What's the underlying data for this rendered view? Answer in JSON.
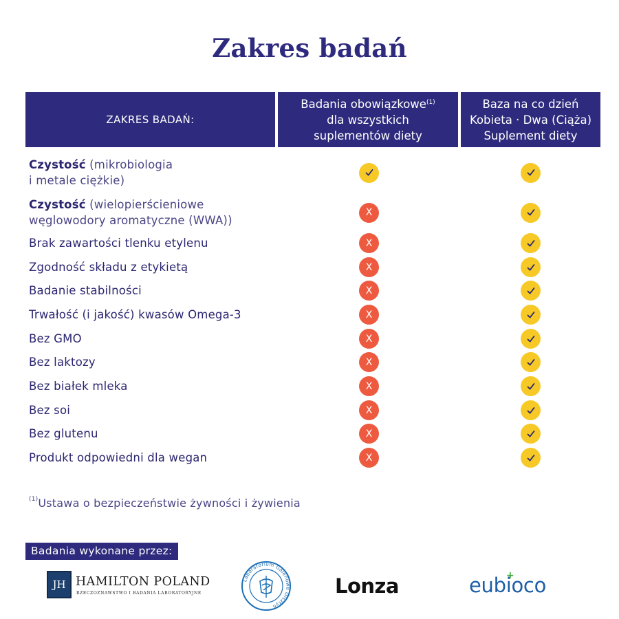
{
  "title": "Zakres badań",
  "header": {
    "col1": "ZAKRES BADAŃ:",
    "col2_line1": "Badania obowiązkowe",
    "col2_sup": "(1)",
    "col2_line2": "dla wszystkich",
    "col2_line3": "suplementów diety",
    "col3_line1": "Baza na co dzień",
    "col3_line2": "Kobieta · Dwa (Ciąża)",
    "col3_line3": "Suplement diety"
  },
  "rows": [
    {
      "bold": "Czystość",
      "light": " (mikrobiologia",
      "line2": "i metale ciężkie)",
      "mandatory": "yes",
      "product": "yes"
    },
    {
      "bold": "Czystość",
      "light": " (wielopierścieniowe",
      "line2": "węglowodory aromatyczne (WWA))",
      "mandatory": "no",
      "product": "yes"
    },
    {
      "text": "Brak zawartości tlenku etylenu",
      "mandatory": "no",
      "product": "yes"
    },
    {
      "text": "Zgodność składu z etykietą",
      "mandatory": "no",
      "product": "yes"
    },
    {
      "text": "Badanie stabilności",
      "mandatory": "no",
      "product": "yes"
    },
    {
      "text": "Trwałość (i jakość) kwasów Omega-3",
      "mandatory": "no",
      "product": "yes"
    },
    {
      "text": "Bez GMO",
      "mandatory": "no",
      "product": "yes"
    },
    {
      "text": "Bez laktozy",
      "mandatory": "no",
      "product": "yes"
    },
    {
      "text": "Bez białek mleka",
      "mandatory": "no",
      "product": "yes"
    },
    {
      "text": "Bez soi",
      "mandatory": "no",
      "product": "yes"
    },
    {
      "text": "Bez glutenu",
      "mandatory": "no",
      "product": "yes"
    },
    {
      "text": "Produkt odpowiedni dla wegan",
      "mandatory": "no",
      "product": "yes"
    }
  ],
  "no_mark": "X",
  "footnote": {
    "sup": "(1)",
    "text": "Ustawa o bezpieczeństwie żywności i żywienia"
  },
  "made_by": "Badania wykonane przez:",
  "logos": {
    "hamilton_initials": "JH",
    "hamilton_name": "HAMILTON POLAND",
    "hamilton_sub": "RZECZOZNAWSTWO I BADANIA LABORATORYJNE",
    "lab_ring": "Laboratorium Galenowe Olsztyn",
    "lonza": "Lonza",
    "eubioco": "eubioco"
  },
  "colors": {
    "navy": "#2e2a7d",
    "check_yellow": "#f7c927",
    "cross_red": "#ee5a3f"
  }
}
